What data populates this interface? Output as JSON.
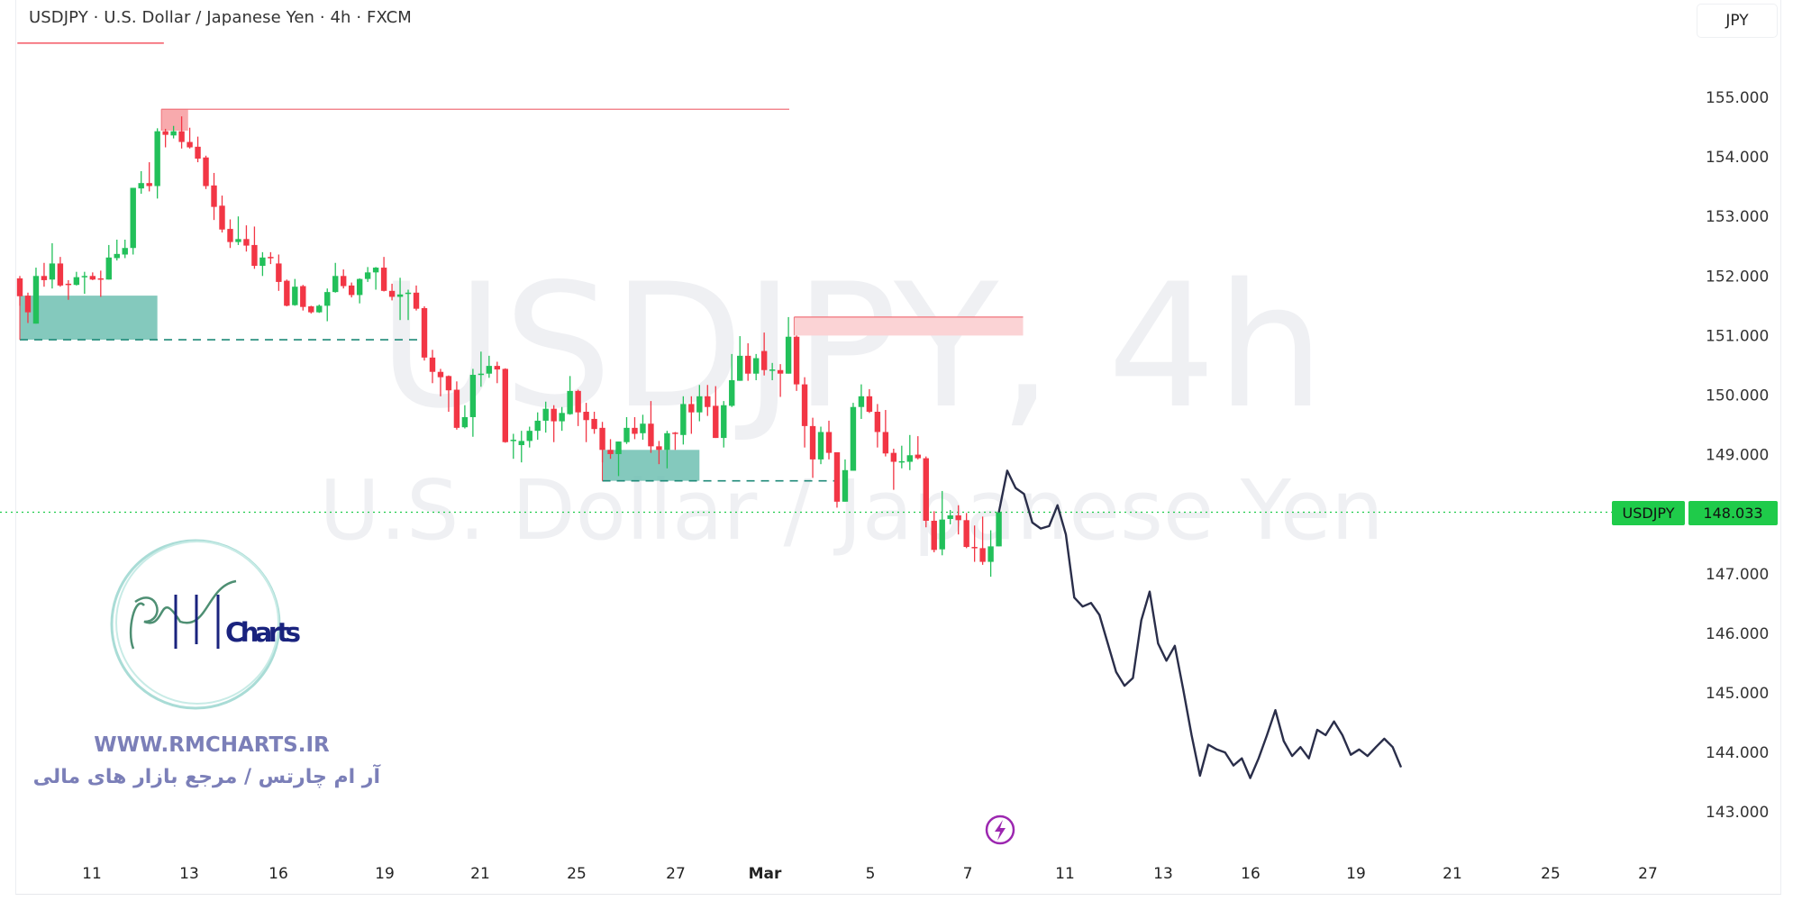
{
  "header": {
    "title": "USDJPY · U.S. Dollar / Japanese Yen · 4h · FXCM",
    "currency_button": "JPY"
  },
  "watermark": {
    "line1": "USDJPY, 4h",
    "line2": "U.S. Dollar / Japanese Yen"
  },
  "logo": {
    "brand_text": "RM Charts",
    "website": "WWW.RMCHARTS.IR",
    "tagline_fa": "آر ام چارتس / مرجع بازار های مالی"
  },
  "last_price": {
    "symbol": "USDJPY",
    "value": "148.033",
    "color": "#1fcb4a"
  },
  "icons": {
    "events": "lightning-icon"
  },
  "colors": {
    "up": "#22c05a",
    "down": "#f23645",
    "supply_zone": "#f8a5a9",
    "demand_zone": "#6fbfb1",
    "projection": "#2a2e4a"
  },
  "chart_data": {
    "type": "candlestick",
    "timeframe": "4h",
    "ylim": [
      142.5,
      156.0
    ],
    "y_ticks": [
      "155.000",
      "154.000",
      "153.000",
      "152.000",
      "151.000",
      "150.000",
      "149.000",
      "147.000",
      "146.000",
      "145.000",
      "144.000",
      "143.000"
    ],
    "x_tick_labels": [
      "11",
      "13",
      "16",
      "19",
      "21",
      "25",
      "27",
      "Mar",
      "5",
      "7",
      "11",
      "13",
      "16",
      "19",
      "21",
      "25",
      "27"
    ],
    "ohlc": [
      [
        151.96,
        152.0,
        151.5,
        151.66
      ],
      [
        151.67,
        151.72,
        151.21,
        151.39
      ],
      [
        151.2,
        152.14,
        151.2,
        152.0
      ],
      [
        152.0,
        152.22,
        151.82,
        151.93
      ],
      [
        151.94,
        152.55,
        151.79,
        152.21
      ],
      [
        152.21,
        152.32,
        151.82,
        151.84
      ],
      [
        151.87,
        151.93,
        151.6,
        151.86
      ],
      [
        151.85,
        152.07,
        151.84,
        151.98
      ],
      [
        151.99,
        152.07,
        151.7,
        152.0
      ],
      [
        152.0,
        152.06,
        151.93,
        151.94
      ],
      [
        151.96,
        152.09,
        151.65,
        151.95
      ],
      [
        151.94,
        152.52,
        151.94,
        152.31
      ],
      [
        152.3,
        152.61,
        152.26,
        152.37
      ],
      [
        152.36,
        152.61,
        152.3,
        152.47
      ],
      [
        152.47,
        153.48,
        152.36,
        153.48
      ],
      [
        153.47,
        153.76,
        153.38,
        153.56
      ],
      [
        153.56,
        153.91,
        153.42,
        153.51
      ],
      [
        153.51,
        154.48,
        153.3,
        154.43
      ],
      [
        154.43,
        154.47,
        154.16,
        154.37
      ],
      [
        154.36,
        154.52,
        154.31,
        154.43
      ],
      [
        154.43,
        154.68,
        154.14,
        154.25
      ],
      [
        154.25,
        154.49,
        154.14,
        154.16
      ],
      [
        154.17,
        154.34,
        153.91,
        153.97
      ],
      [
        153.99,
        154.02,
        153.46,
        153.51
      ],
      [
        153.52,
        153.73,
        152.94,
        153.16
      ],
      [
        153.18,
        153.35,
        152.73,
        152.78
      ],
      [
        152.79,
        152.95,
        152.47,
        152.57
      ],
      [
        152.57,
        153.0,
        152.52,
        152.62
      ],
      [
        152.62,
        152.85,
        152.41,
        152.51
      ],
      [
        152.52,
        152.83,
        152.12,
        152.17
      ],
      [
        152.17,
        152.4,
        152.0,
        152.31
      ],
      [
        152.32,
        152.4,
        152.2,
        152.3
      ],
      [
        152.21,
        152.36,
        151.75,
        151.9
      ],
      [
        151.92,
        151.94,
        151.49,
        151.5
      ],
      [
        151.51,
        151.95,
        151.5,
        151.82
      ],
      [
        151.83,
        151.85,
        151.42,
        151.48
      ],
      [
        151.49,
        151.5,
        151.37,
        151.39
      ],
      [
        151.39,
        151.52,
        151.38,
        151.5
      ],
      [
        151.5,
        151.79,
        151.24,
        151.73
      ],
      [
        151.73,
        152.22,
        151.72,
        152.0
      ],
      [
        152.0,
        152.11,
        151.79,
        151.83
      ],
      [
        151.84,
        151.89,
        151.64,
        151.68
      ],
      [
        151.68,
        151.96,
        151.54,
        151.95
      ],
      [
        151.95,
        152.15,
        151.9,
        152.06
      ],
      [
        152.06,
        152.15,
        151.77,
        152.14
      ],
      [
        152.14,
        152.32,
        151.74,
        151.75
      ],
      [
        151.75,
        151.87,
        151.59,
        151.65
      ],
      [
        151.65,
        151.97,
        151.26,
        151.69
      ],
      [
        151.7,
        151.77,
        151.26,
        151.72
      ],
      [
        151.72,
        151.84,
        151.42,
        151.45
      ],
      [
        151.46,
        151.49,
        150.58,
        150.63
      ],
      [
        150.63,
        150.76,
        150.2,
        150.39
      ],
      [
        150.39,
        150.44,
        149.98,
        150.3
      ],
      [
        150.32,
        150.33,
        149.72,
        150.08
      ],
      [
        150.09,
        150.23,
        149.42,
        149.45
      ],
      [
        149.46,
        149.83,
        149.44,
        149.63
      ],
      [
        149.63,
        150.44,
        149.3,
        150.34
      ],
      [
        150.35,
        150.73,
        150.14,
        150.36
      ],
      [
        150.36,
        150.66,
        150.29,
        150.49
      ],
      [
        150.49,
        150.56,
        150.2,
        150.43
      ],
      [
        150.44,
        150.45,
        149.2,
        149.21
      ],
      [
        149.23,
        149.35,
        148.93,
        149.25
      ],
      [
        149.16,
        149.4,
        148.87,
        149.23
      ],
      [
        149.23,
        149.47,
        149.12,
        149.4
      ],
      [
        149.4,
        149.71,
        149.25,
        149.57
      ],
      [
        149.57,
        149.89,
        149.37,
        149.77
      ],
      [
        149.77,
        149.83,
        149.21,
        149.56
      ],
      [
        149.56,
        149.8,
        149.4,
        149.7
      ],
      [
        149.68,
        150.32,
        149.67,
        150.07
      ],
      [
        150.07,
        150.09,
        149.48,
        149.71
      ],
      [
        149.72,
        149.87,
        149.21,
        149.58
      ],
      [
        149.6,
        149.72,
        149.35,
        149.43
      ],
      [
        149.45,
        149.55,
        148.87,
        149.08
      ],
      [
        149.08,
        149.26,
        148.93,
        149.01
      ],
      [
        149.01,
        149.22,
        148.64,
        149.22
      ],
      [
        149.21,
        149.63,
        149.18,
        149.45
      ],
      [
        149.45,
        149.63,
        149.26,
        149.35
      ],
      [
        149.36,
        149.67,
        149.25,
        149.52
      ],
      [
        149.52,
        149.9,
        149.03,
        149.14
      ],
      [
        149.14,
        149.23,
        148.84,
        149.08
      ],
      [
        149.08,
        149.4,
        148.77,
        149.36
      ],
      [
        149.37,
        149.38,
        149.08,
        149.35
      ],
      [
        149.33,
        149.98,
        149.17,
        149.85
      ],
      [
        149.85,
        149.98,
        149.35,
        149.71
      ],
      [
        149.71,
        150.17,
        149.56,
        149.98
      ],
      [
        149.98,
        150.17,
        149.65,
        149.8
      ],
      [
        149.82,
        150.15,
        149.28,
        149.28
      ],
      [
        149.28,
        149.9,
        149.12,
        149.83
      ],
      [
        149.82,
        150.69,
        149.8,
        150.25
      ],
      [
        150.24,
        150.99,
        150.24,
        150.66
      ],
      [
        150.66,
        150.87,
        150.24,
        150.36
      ],
      [
        150.36,
        150.69,
        150.25,
        150.62
      ],
      [
        150.74,
        151.05,
        150.33,
        150.42
      ],
      [
        150.42,
        150.54,
        150.25,
        150.43
      ],
      [
        150.42,
        150.52,
        149.97,
        150.36
      ],
      [
        150.36,
        151.31,
        150.36,
        150.98
      ],
      [
        150.98,
        151.0,
        150.07,
        150.18
      ],
      [
        150.18,
        150.3,
        149.12,
        149.48
      ],
      [
        149.48,
        149.62,
        148.61,
        148.92
      ],
      [
        148.92,
        149.47,
        148.84,
        149.38
      ],
      [
        149.38,
        149.57,
        148.92,
        149.03
      ],
      [
        149.04,
        149.04,
        148.11,
        148.21
      ],
      [
        148.21,
        148.92,
        148.21,
        148.74
      ],
      [
        148.73,
        149.87,
        148.73,
        149.8
      ],
      [
        149.8,
        150.18,
        149.6,
        149.98
      ],
      [
        149.98,
        150.1,
        149.7,
        149.72
      ],
      [
        149.72,
        149.85,
        149.12,
        149.38
      ],
      [
        149.38,
        149.75,
        148.97,
        149.02
      ],
      [
        149.03,
        149.1,
        148.41,
        148.88
      ],
      [
        148.87,
        149.15,
        148.77,
        148.89
      ],
      [
        148.88,
        149.33,
        148.74,
        148.99
      ],
      [
        149.0,
        149.31,
        148.92,
        148.94
      ],
      [
        148.94,
        148.97,
        147.78,
        147.89
      ],
      [
        147.89,
        148.05,
        147.36,
        147.4
      ],
      [
        147.41,
        148.39,
        147.31,
        147.91
      ],
      [
        147.92,
        148.07,
        147.83,
        147.98
      ],
      [
        147.98,
        148.15,
        147.66,
        147.9
      ],
      [
        147.9,
        148.02,
        147.43,
        147.45
      ],
      [
        147.45,
        147.81,
        147.2,
        147.44
      ],
      [
        147.43,
        147.96,
        147.15,
        147.2
      ],
      [
        147.2,
        147.73,
        146.95,
        147.46
      ],
      [
        147.46,
        148.03,
        147.46,
        148.033
      ]
    ],
    "projection": [
      148.03,
      148.73,
      148.44,
      148.34,
      147.86,
      147.76,
      147.8,
      148.15,
      147.66,
      146.6,
      146.45,
      146.51,
      146.31,
      145.83,
      145.35,
      145.12,
      145.25,
      146.22,
      146.7,
      145.83,
      145.54,
      145.79,
      145.06,
      144.29,
      143.61,
      144.13,
      144.05,
      144.0,
      143.78,
      143.9,
      143.57,
      143.9,
      144.29,
      144.71,
      144.19,
      143.94,
      144.09,
      143.9,
      144.38,
      144.29,
      144.52,
      144.29,
      143.96,
      144.05,
      143.94,
      144.09,
      144.23,
      144.09,
      143.75
    ],
    "zones": [
      {
        "kind": "supply",
        "bar_start": 17.5,
        "bar_end": 20.8,
        "price_low": 154.44,
        "price_high": 154.8,
        "line_end_bar": 95.1
      },
      {
        "kind": "supply",
        "bar_start": 95.7,
        "bar_end": 124.0,
        "price_low": 151.0,
        "price_high": 151.31,
        "line_end_bar": 124.0
      },
      {
        "kind": "demand",
        "bar_start": 0,
        "bar_end": 17.0,
        "price_low": 150.93,
        "price_high": 151.67,
        "line_end_bar": 49.4
      },
      {
        "kind": "demand",
        "bar_start": 72.0,
        "bar_end": 84.0,
        "price_low": 148.56,
        "price_high": 149.08,
        "line_end_bar": 100.8
      }
    ],
    "top_line": {
      "price": 155.91,
      "bar_start": -0.3,
      "bar_end": 17.8
    },
    "last_price_line": 148.033,
    "grid": false
  }
}
